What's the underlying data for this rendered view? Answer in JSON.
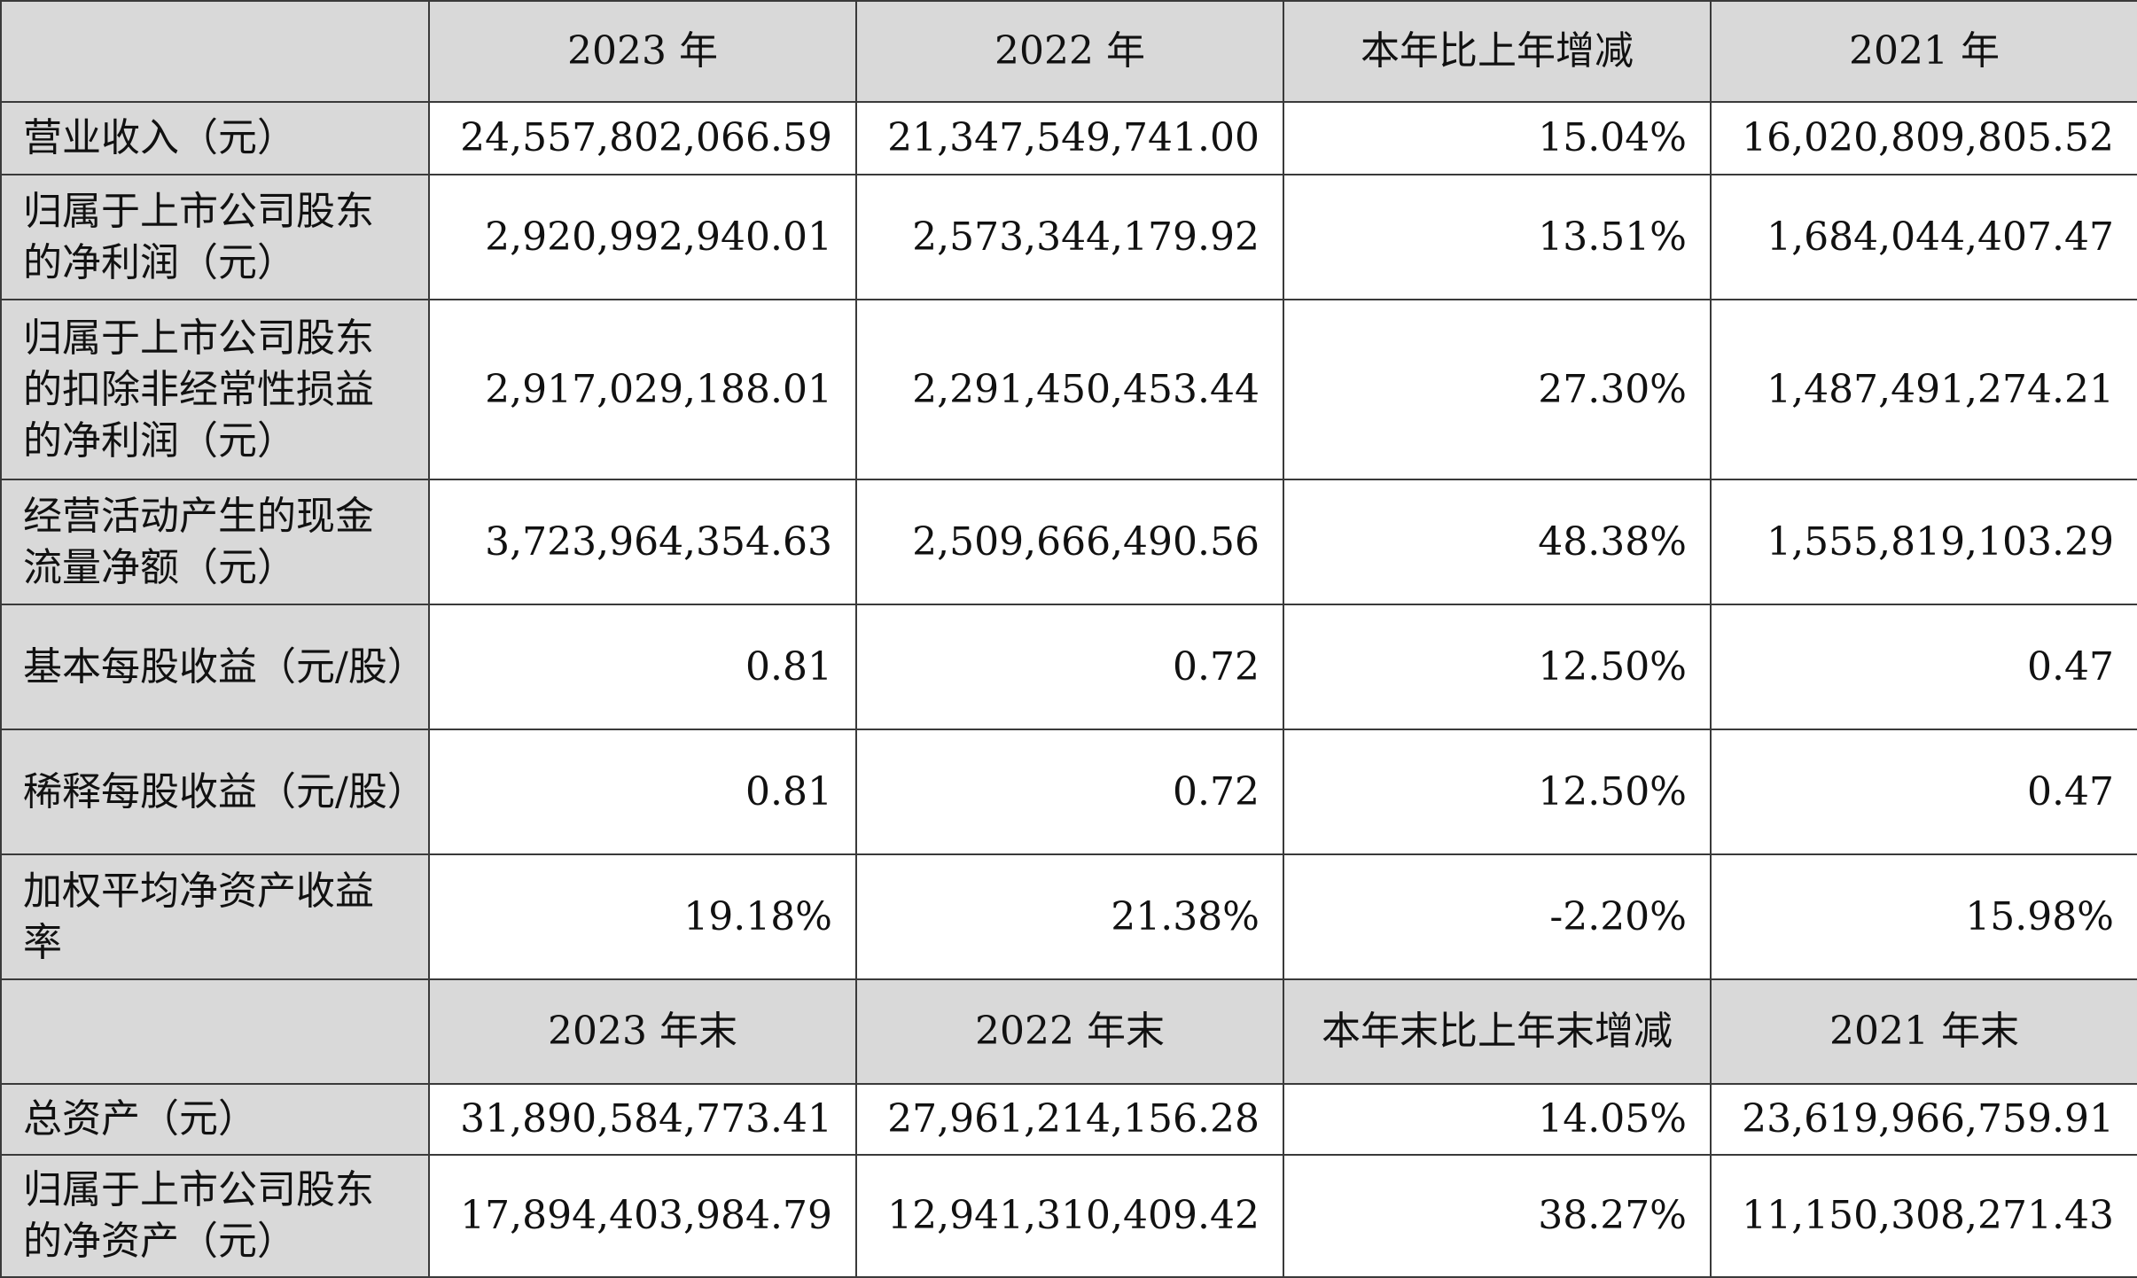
{
  "header1": {
    "blank": "",
    "cols": [
      "2023 年",
      "2022 年",
      "本年比上年增减",
      "2021 年"
    ]
  },
  "rows1": [
    {
      "label": "营业收入（元）",
      "values": [
        "24,557,802,066.59",
        "21,347,549,741.00",
        "15.04%",
        "16,020,809,805.52"
      ]
    },
    {
      "label": "归属于上市公司股东的净利润（元）",
      "values": [
        "2,920,992,940.01",
        "2,573,344,179.92",
        "13.51%",
        "1,684,044,407.47"
      ]
    },
    {
      "label": "归属于上市公司股东的扣除非经常性损益的净利润（元）",
      "values": [
        "2,917,029,188.01",
        "2,291,450,453.44",
        "27.30%",
        "1,487,491,274.21"
      ]
    },
    {
      "label": "经营活动产生的现金流量净额（元）",
      "values": [
        "3,723,964,354.63",
        "2,509,666,490.56",
        "48.38%",
        "1,555,819,103.29"
      ]
    },
    {
      "label": "基本每股收益（元/股）",
      "values": [
        "0.81",
        "0.72",
        "12.50%",
        "0.47"
      ]
    },
    {
      "label": "稀释每股收益（元/股）",
      "values": [
        "0.81",
        "0.72",
        "12.50%",
        "0.47"
      ]
    },
    {
      "label": "加权平均净资产收益率",
      "values": [
        "19.18%",
        "21.38%",
        "-2.20%",
        "15.98%"
      ]
    }
  ],
  "header2": {
    "blank": "",
    "cols": [
      "2023 年末",
      "2022 年末",
      "本年末比上年末增减",
      "2021 年末"
    ]
  },
  "rows2": [
    {
      "label": "总资产（元）",
      "values": [
        "31,890,584,773.41",
        "27,961,214,156.28",
        "14.05%",
        "23,619,966,759.91"
      ]
    },
    {
      "label": "归属于上市公司股东的净资产（元）",
      "values": [
        "17,894,403,984.79",
        "12,941,310,409.42",
        "38.27%",
        "11,150,308,271.43"
      ]
    }
  ]
}
